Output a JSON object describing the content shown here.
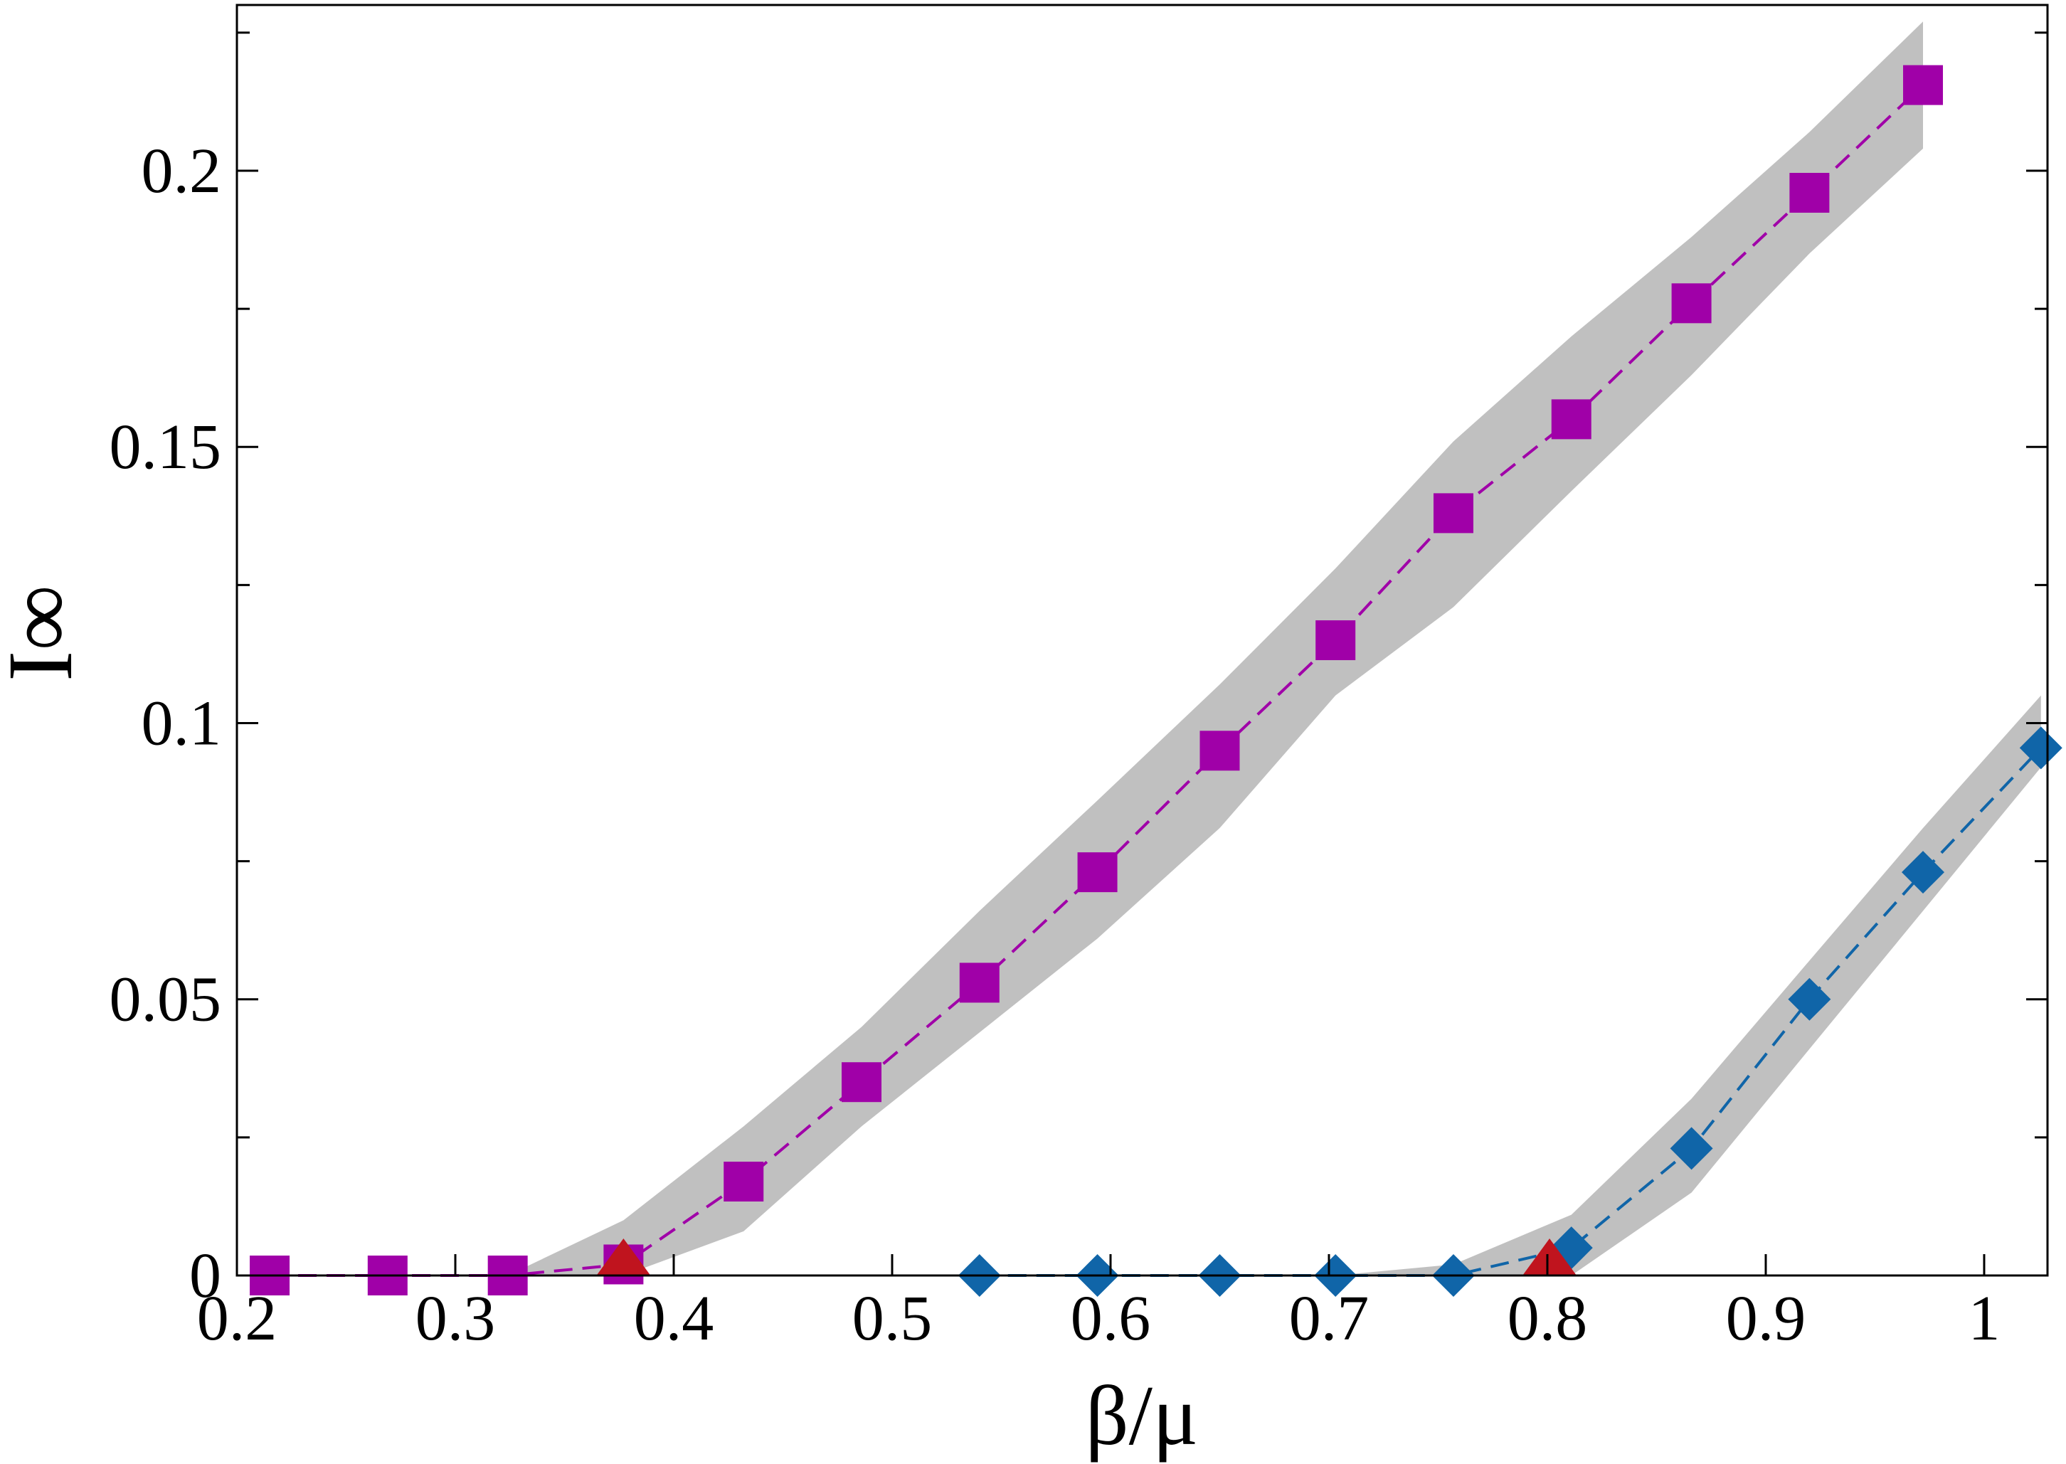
{
  "chart_data": {
    "type": "line",
    "xlabel": "β/μ",
    "ylabel": "I∞",
    "xlim": [
      0.2,
      1.029
    ],
    "ylim": [
      0,
      0.23
    ],
    "xticks": [
      0.2,
      0.3,
      0.4,
      0.5,
      0.6,
      0.7,
      0.8,
      0.9,
      1
    ],
    "yticks": [
      0,
      0.05,
      0.1,
      0.15,
      0.2
    ],
    "yminorticks": [
      0.025,
      0.075,
      0.125,
      0.175,
      0.225
    ],
    "band_color": "#c0c0c0",
    "series": [
      {
        "color": "#a000a8",
        "marker": "square",
        "x": [
          0.215,
          0.269,
          0.324,
          0.377,
          0.432,
          0.486,
          0.54,
          0.594,
          0.65,
          0.703,
          0.757,
          0.811,
          0.866,
          0.92,
          0.972
        ],
        "values": [
          0,
          0,
          0,
          0.002,
          0.017,
          0.035,
          0.053,
          0.073,
          0.095,
          0.115,
          0.138,
          0.155,
          0.176,
          0.196,
          0.2155
        ],
        "lower": [
          0,
          0,
          0,
          0,
          0.008,
          0.027,
          0.044,
          0.061,
          0.081,
          0.105,
          0.121,
          0.142,
          0.163,
          0.185,
          0.204
        ],
        "upper": [
          0,
          0,
          0,
          0.01,
          0.027,
          0.045,
          0.066,
          0.086,
          0.107,
          0.128,
          0.151,
          0.17,
          0.188,
          0.207,
          0.227
        ]
      },
      {
        "color": "#1065a8",
        "marker": "diamond",
        "x": [
          0.54,
          0.594,
          0.65,
          0.703,
          0.757,
          0.811,
          0.866,
          0.92,
          0.972,
          1.026
        ],
        "values": [
          0,
          0,
          0,
          0,
          0,
          0.005,
          0.023,
          0.05,
          0.073,
          0.0955
        ],
        "lower": [
          0,
          0,
          0,
          0,
          0,
          0,
          0.015,
          0.041,
          0.066,
          0.092
        ],
        "upper": [
          0,
          0,
          0,
          0,
          0.002,
          0.011,
          0.032,
          0.057,
          0.081,
          0.105
        ]
      },
      {
        "color": "#c0141e",
        "marker": "triangle",
        "x": [
          0.377,
          0.801
        ],
        "values": [
          0,
          0
        ]
      }
    ]
  }
}
